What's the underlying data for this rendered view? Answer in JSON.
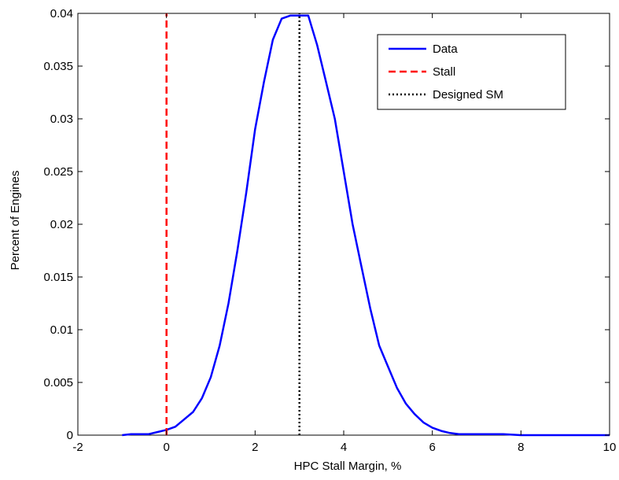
{
  "chart_data": {
    "type": "line",
    "title": "",
    "xlabel": "HPC Stall Margin, %",
    "ylabel": "Percent of Engines",
    "xlim": [
      -2,
      10
    ],
    "ylim": [
      0,
      0.04
    ],
    "x_ticks": [
      -2,
      0,
      2,
      4,
      6,
      8,
      10
    ],
    "y_ticks": [
      0,
      0.005,
      0.01,
      0.015,
      0.02,
      0.025,
      0.03,
      0.035,
      0.04
    ],
    "grid": false,
    "legend_position": "top-right",
    "series": [
      {
        "name": "Data",
        "color": "#0000ff",
        "style": "solid",
        "x": [
          -1.0,
          -0.8,
          -0.6,
          -0.4,
          -0.2,
          0.0,
          0.2,
          0.4,
          0.6,
          0.8,
          1.0,
          1.2,
          1.4,
          1.6,
          1.8,
          2.0,
          2.2,
          2.4,
          2.6,
          2.8,
          3.0,
          3.2,
          3.4,
          3.6,
          3.8,
          4.0,
          4.2,
          4.4,
          4.6,
          4.8,
          5.0,
          5.2,
          5.4,
          5.6,
          5.8,
          6.0,
          6.2,
          6.4,
          6.6,
          7.0,
          7.6,
          8.0,
          9.0,
          10.0
        ],
        "y": [
          0.0,
          0.0001,
          0.0001,
          0.0001,
          0.0003,
          0.0005,
          0.0008,
          0.0015,
          0.0022,
          0.0035,
          0.0055,
          0.0085,
          0.0125,
          0.0175,
          0.023,
          0.029,
          0.0335,
          0.0375,
          0.0395,
          0.0398,
          0.0398,
          0.0398,
          0.037,
          0.0335,
          0.03,
          0.025,
          0.02,
          0.016,
          0.012,
          0.0085,
          0.0065,
          0.0045,
          0.003,
          0.002,
          0.0012,
          0.0007,
          0.0004,
          0.0002,
          0.0001,
          0.0001,
          0.0001,
          0.0,
          0.0,
          0.0
        ]
      },
      {
        "name": "Stall",
        "color": "#ff0000",
        "style": "dashed",
        "x": [
          0,
          0
        ],
        "y": [
          0,
          0.04
        ]
      },
      {
        "name": "Designed SM",
        "color": "#000000",
        "style": "dotted",
        "x": [
          3,
          3
        ],
        "y": [
          0,
          0.04
        ]
      }
    ]
  }
}
